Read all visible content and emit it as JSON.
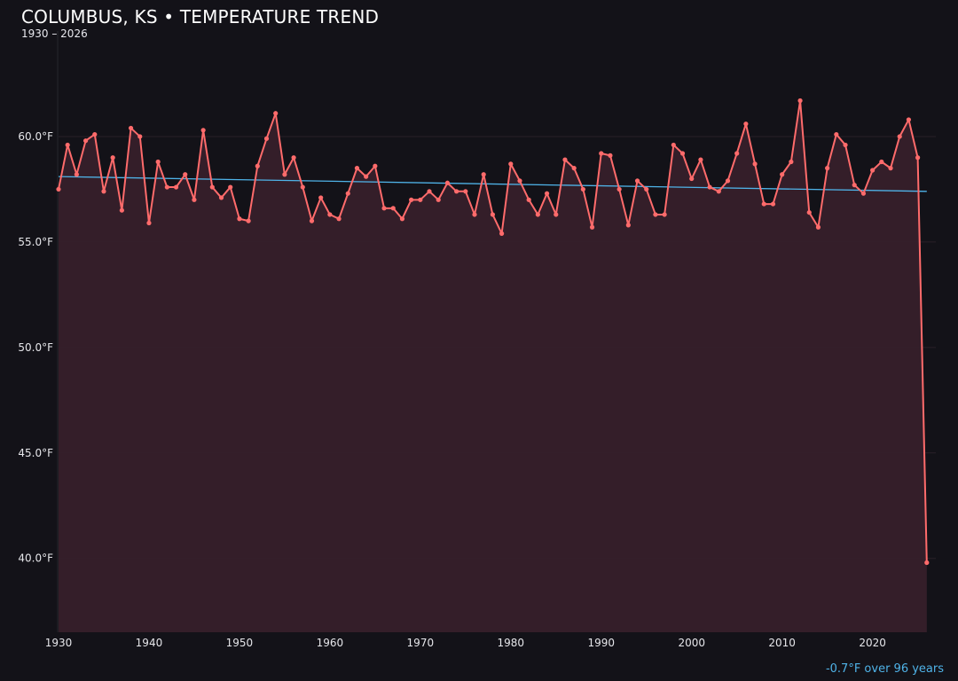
{
  "chart_data": {
    "type": "line",
    "title": "COLUMBUS, KS • TEMPERATURE TREND",
    "subtitle": "1930 – 2026",
    "annotation": "-0.7°F over 96 years",
    "xlim": [
      1930,
      2027
    ],
    "ylim": [
      36.5,
      65.0
    ],
    "x_ticks": [
      1930,
      1940,
      1950,
      1960,
      1970,
      1980,
      1990,
      2000,
      2010,
      2020
    ],
    "y_ticks": [
      40,
      45,
      50,
      55,
      60
    ],
    "y_tick_labels": [
      "40.0°F",
      "45.0°F",
      "50.0°F",
      "55.0°F",
      "60.0°F"
    ],
    "grid": true,
    "colors": {
      "line": "#ff6b6b",
      "fill": "#36202a",
      "trend": "#4fb3e8",
      "background": "#131218"
    },
    "x": [
      1930,
      1931,
      1932,
      1933,
      1934,
      1935,
      1936,
      1937,
      1938,
      1939,
      1940,
      1941,
      1942,
      1943,
      1944,
      1945,
      1946,
      1947,
      1948,
      1949,
      1950,
      1951,
      1952,
      1953,
      1954,
      1955,
      1956,
      1957,
      1958,
      1959,
      1960,
      1961,
      1962,
      1963,
      1964,
      1965,
      1966,
      1967,
      1968,
      1969,
      1970,
      1971,
      1972,
      1973,
      1974,
      1975,
      1976,
      1977,
      1978,
      1979,
      1980,
      1981,
      1982,
      1983,
      1984,
      1985,
      1986,
      1987,
      1988,
      1989,
      1990,
      1991,
      1992,
      1993,
      1994,
      1995,
      1996,
      1997,
      1998,
      1999,
      2000,
      2001,
      2002,
      2003,
      2004,
      2005,
      2006,
      2007,
      2008,
      2009,
      2010,
      2011,
      2012,
      2013,
      2014,
      2015,
      2016,
      2017,
      2018,
      2019,
      2020,
      2021,
      2022,
      2023,
      2024,
      2025,
      2026
    ],
    "series": [
      {
        "values": [
          57.5,
          59.6,
          58.2,
          59.8,
          60.1,
          57.4,
          59.0,
          56.5,
          60.4,
          60.0,
          55.9,
          58.8,
          57.6,
          57.6,
          58.2,
          57.0,
          60.3,
          57.6,
          57.1,
          57.6,
          56.1,
          56.0,
          58.6,
          59.9,
          61.1,
          58.2,
          59.0,
          57.6,
          56.0,
          57.1,
          56.3,
          56.1,
          57.3,
          58.5,
          58.1,
          58.6,
          56.6,
          56.6,
          56.1,
          57.0,
          57.0,
          57.4,
          57.0,
          57.8,
          57.4,
          57.4,
          56.3,
          58.2,
          56.3,
          55.4,
          58.7,
          57.9,
          57.0,
          56.3,
          57.3,
          56.3,
          58.9,
          58.5,
          57.5,
          55.7,
          59.2,
          59.1,
          57.5,
          55.8,
          57.9,
          57.5,
          56.3,
          56.3,
          59.6,
          59.2,
          58.0,
          58.9,
          57.6,
          57.4,
          57.9,
          59.2,
          60.6,
          58.7,
          56.8,
          56.8,
          58.2,
          58.8,
          61.7,
          56.4,
          55.7,
          58.5,
          60.1,
          59.6,
          57.7,
          57.3,
          58.4,
          58.8,
          58.5,
          60.0,
          60.8,
          59.0,
          39.8
        ]
      }
    ],
    "trend": {
      "x": [
        1930,
        2026
      ],
      "y": [
        58.1,
        57.4
      ]
    }
  }
}
